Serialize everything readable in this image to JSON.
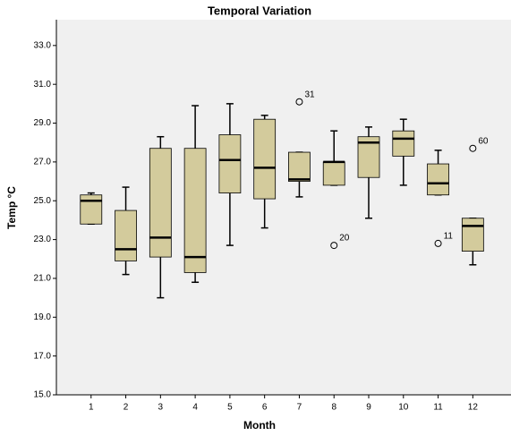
{
  "chart_data": {
    "type": "box",
    "title": "Temporal Variation",
    "x_label": "Month",
    "y_label": "Temp °C",
    "x": [
      1,
      2,
      3,
      4,
      5,
      6,
      7,
      8,
      9,
      10,
      11,
      12
    ],
    "low": [
      23.8,
      21.2,
      20.0,
      20.8,
      22.7,
      23.6,
      25.2,
      25.8,
      24.1,
      25.8,
      25.3,
      21.7
    ],
    "q1": [
      23.8,
      21.9,
      22.1,
      21.3,
      25.4,
      25.1,
      26.0,
      25.8,
      26.2,
      27.3,
      25.3,
      22.4
    ],
    "median": [
      25.0,
      22.5,
      23.1,
      22.1,
      27.1,
      26.7,
      26.1,
      27.0,
      28.0,
      28.2,
      25.9,
      23.7
    ],
    "q3": [
      25.3,
      24.5,
      27.7,
      27.7,
      28.4,
      29.2,
      27.5,
      27.0,
      28.3,
      28.6,
      26.9,
      24.1
    ],
    "high": [
      25.4,
      25.7,
      28.3,
      29.9,
      30.0,
      29.4,
      27.5,
      28.6,
      28.8,
      29.2,
      27.6,
      24.1
    ],
    "outliers": [
      {
        "x": 7,
        "value": 30.1,
        "label": "31"
      },
      {
        "x": 8,
        "value": 22.7,
        "label": "20"
      },
      {
        "x": 11,
        "value": 22.8,
        "label": "11"
      },
      {
        "x": 12,
        "value": 27.7,
        "label": "60"
      }
    ],
    "color": "#d3cb9c",
    "xlim": [
      0,
      13.1
    ],
    "xticks": [
      1,
      2,
      3,
      4,
      5,
      6,
      7,
      8,
      9,
      10,
      11,
      12
    ],
    "ylim": [
      15,
      34.33
    ],
    "yticks": [
      {
        "value": 15,
        "label": "15.0"
      },
      {
        "value": 17,
        "label": "17.0"
      },
      {
        "value": 19,
        "label": "19.0"
      },
      {
        "value": 21,
        "label": "21.0"
      },
      {
        "value": 23,
        "label": "23.0"
      },
      {
        "value": 25,
        "label": "25.0"
      },
      {
        "value": 27,
        "label": "27.0"
      },
      {
        "value": 29,
        "label": "29.0"
      },
      {
        "value": 31,
        "label": "31.0"
      },
      {
        "value": 33,
        "label": "33.0"
      }
    ]
  }
}
